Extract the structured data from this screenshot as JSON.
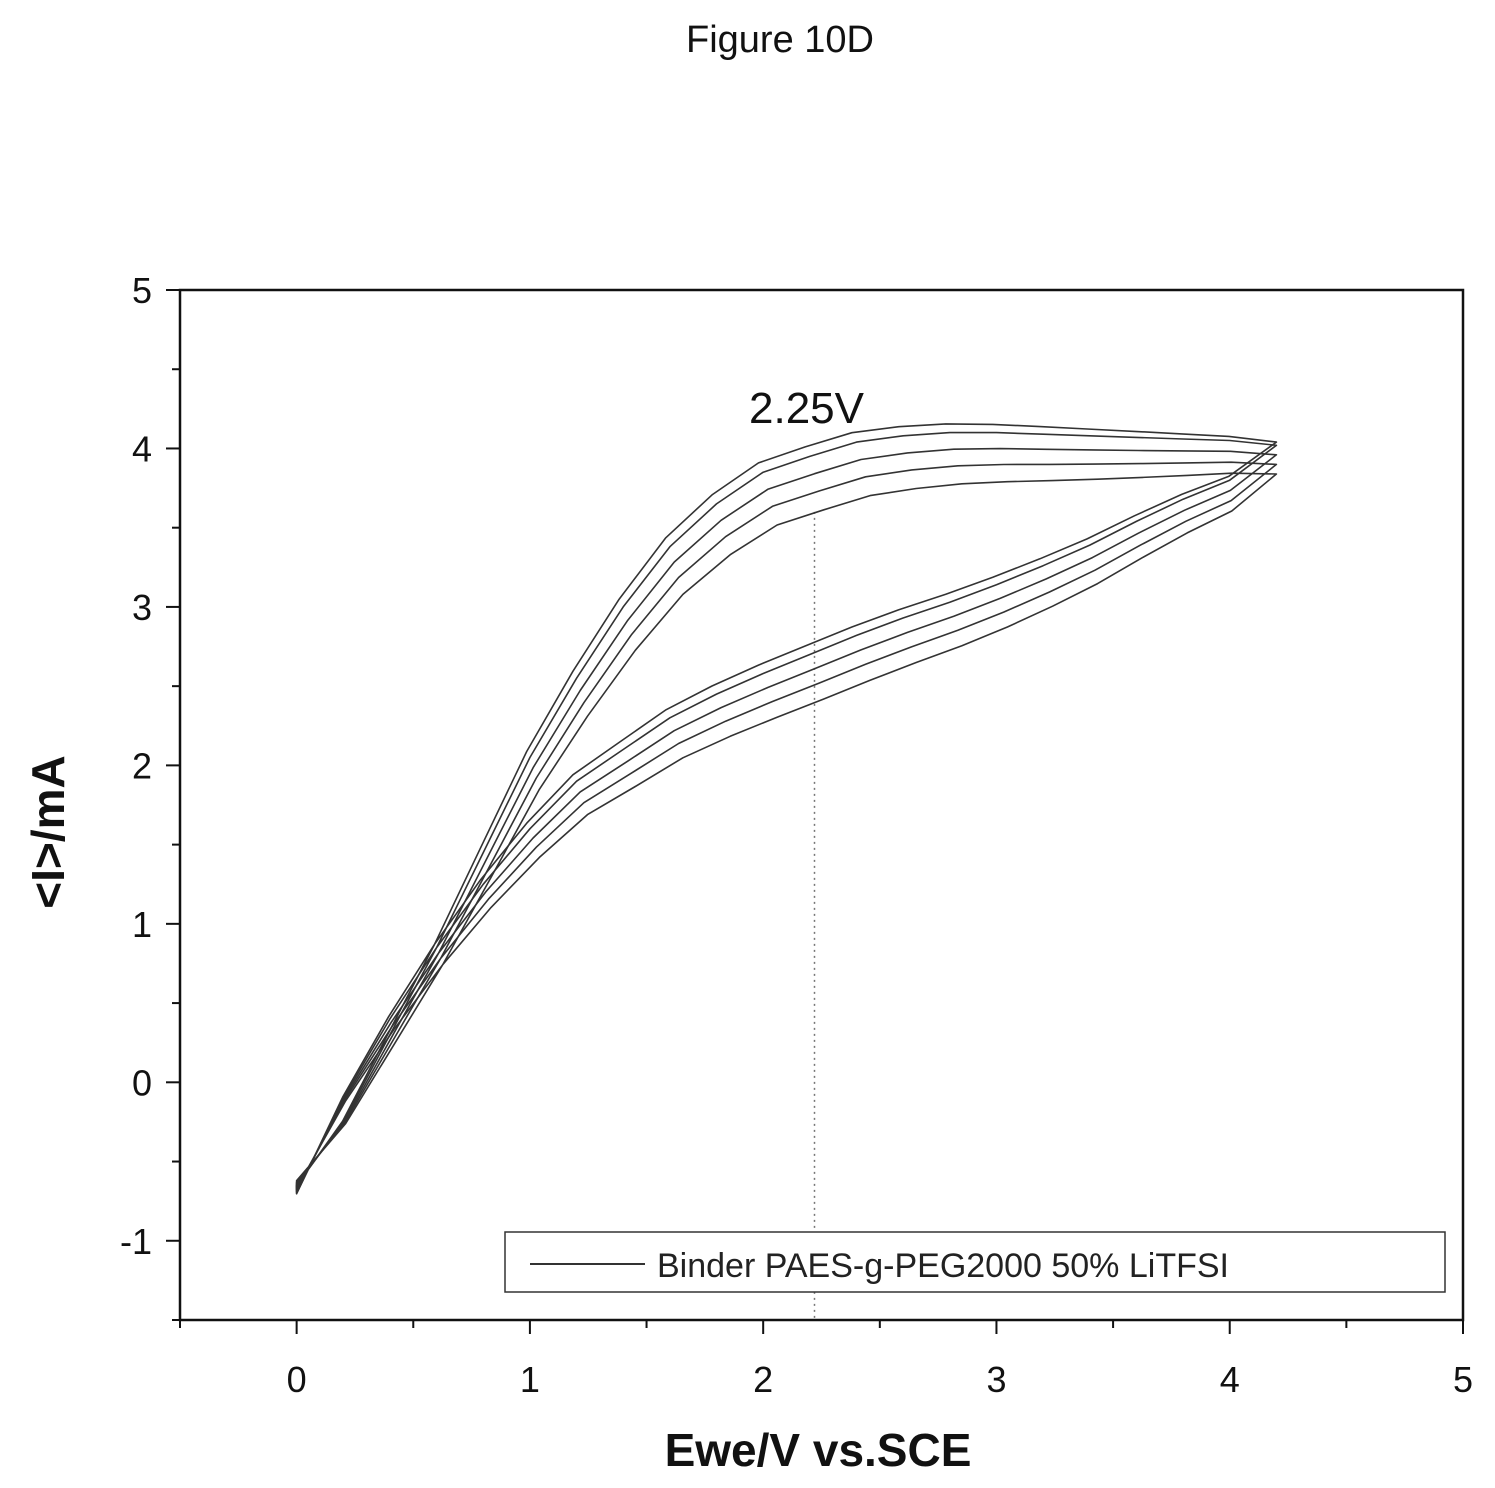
{
  "figure_label": "Figure 10D",
  "chart_data": {
    "type": "line",
    "xlabel": "Ewe/V vs.SCE",
    "ylabel": "<I>/mA",
    "xlim": [
      -0.5,
      5
    ],
    "ylim": [
      -1.5,
      5
    ],
    "x_ticks": [
      0,
      1,
      2,
      3,
      4,
      5
    ],
    "x_tick_labels": [
      "0",
      "1",
      "2",
      "3",
      "4",
      "5"
    ],
    "y_ticks": [
      -1,
      0,
      1,
      2,
      3,
      4,
      5
    ],
    "y_tick_labels": [
      "-1",
      "0",
      "1",
      "2",
      "3",
      "4",
      "5"
    ],
    "grid": false,
    "legend": {
      "position": "bottom-right",
      "entries": [
        "Binder PAES-g-PEG2000 50% LiTFSI"
      ]
    },
    "annotation": {
      "text": "2.25V",
      "x": 2.22
    },
    "line_color": "#333333",
    "series": [
      {
        "x": [
          0,
          0.2,
          0.4,
          0.6,
          0.8,
          1.0,
          1.2,
          1.4,
          1.6,
          1.8,
          2.0,
          2.2,
          2.4,
          2.6,
          2.8,
          3.0,
          3.2,
          3.4,
          3.6,
          3.8,
          4.0,
          4.2,
          4.2,
          4.0,
          3.8,
          3.6,
          3.4,
          3.2,
          3.0,
          2.8,
          2.6,
          2.4,
          2.2,
          2.0,
          1.8,
          1.6,
          1.4,
          1.2,
          1.0,
          0.8,
          0.6,
          0.4,
          0.2,
          0
        ],
        "y": [
          -0.7,
          -0.1,
          0.4,
          0.85,
          1.25,
          1.6,
          1.9,
          2.1,
          2.3,
          2.45,
          2.58,
          2.7,
          2.82,
          2.93,
          3.03,
          3.14,
          3.26,
          3.39,
          3.54,
          3.68,
          3.8,
          4.02,
          4.02,
          4.05,
          4.06,
          4.07,
          4.08,
          4.09,
          4.1,
          4.1,
          4.08,
          4.04,
          3.95,
          3.85,
          3.65,
          3.38,
          3.0,
          2.55,
          2.05,
          1.45,
          0.85,
          0.3,
          -0.25,
          -0.65
        ]
      }
    ]
  }
}
